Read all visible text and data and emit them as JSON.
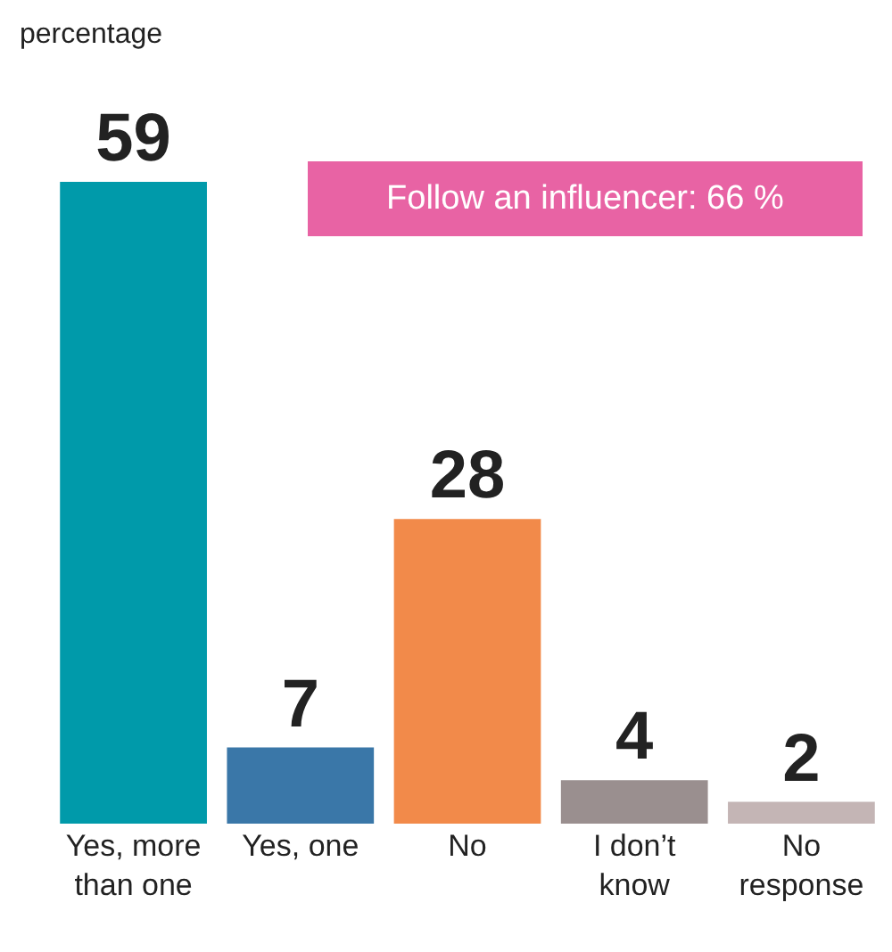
{
  "chart_data": {
    "type": "bar",
    "subtitle": "percentage",
    "categories": [
      "Yes, more\nthan one",
      "Yes, one",
      "No",
      "I don’t\nknow",
      "No\nresponse"
    ],
    "values": [
      59,
      7,
      28,
      4,
      2
    ],
    "colors": [
      "#009aaa",
      "#3a77a8",
      "#f28a4a",
      "#9a8f8f",
      "#c4b5b5"
    ],
    "data_labels": true,
    "annotations": [
      "Follow an influencer: 66 %"
    ],
    "legend": false
  }
}
